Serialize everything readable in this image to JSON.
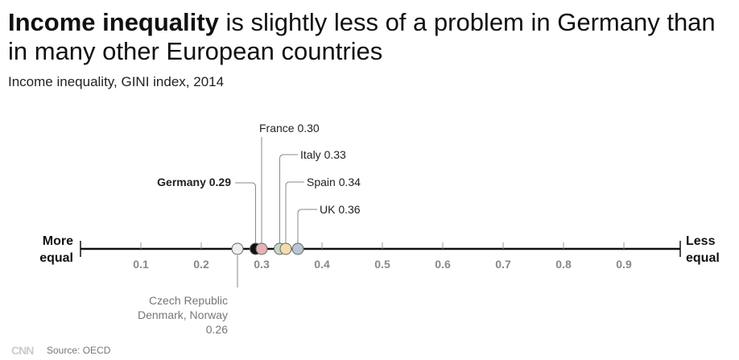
{
  "title_bold": "Income inequality",
  "title_rest": " is slightly less of a problem in Germany than in many other European countries",
  "subtitle": "Income inequality, GINI index, 2014",
  "source": "Source: OECD",
  "logo": "CNN",
  "chart_data": {
    "type": "scatter",
    "xlim": [
      0,
      1
    ],
    "ticks": [
      "0.1",
      "0.2",
      "0.3",
      "0.4",
      "0.5",
      "0.6",
      "0.7",
      "0.8",
      "0.9"
    ],
    "left_label": [
      "More",
      "equal"
    ],
    "right_label": [
      "Less",
      "equal"
    ],
    "points": [
      {
        "label": "Czech Republic\nDenmark, Norway\n0.26",
        "lines": [
          "Czech Republic",
          "Denmark, Norway",
          "0.26"
        ],
        "value": 0.26,
        "color": "#eeeeee"
      },
      {
        "label": "Germany 0.29",
        "value": 0.29,
        "color": "#111111",
        "bold": true
      },
      {
        "label": "France 0.30",
        "value": 0.3,
        "color": "#e5b3b3"
      },
      {
        "label": "Italy 0.33",
        "value": 0.33,
        "color": "#c4d8c2"
      },
      {
        "label": "Spain 0.34",
        "value": 0.34,
        "color": "#f4dcaa"
      },
      {
        "label": "UK 0.36",
        "value": 0.36,
        "color": "#b9c5d3"
      }
    ]
  }
}
